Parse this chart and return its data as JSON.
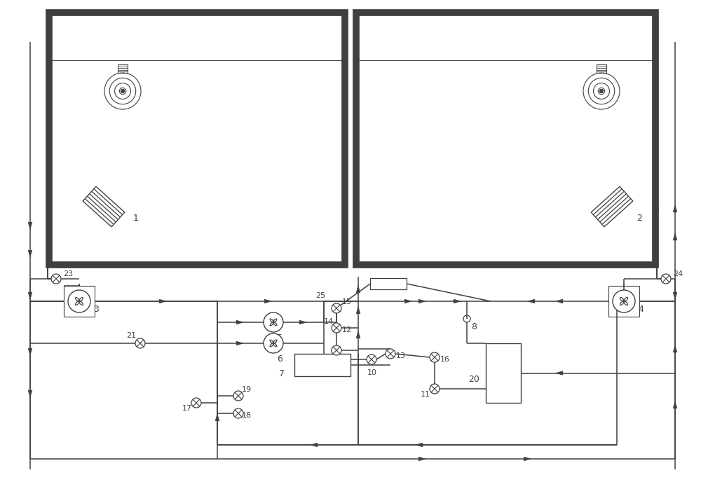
{
  "bg_color": "#ffffff",
  "lc": "#404040",
  "lw_chamber": 7.0,
  "lw_pipe": 1.1,
  "lw_thin": 0.9
}
